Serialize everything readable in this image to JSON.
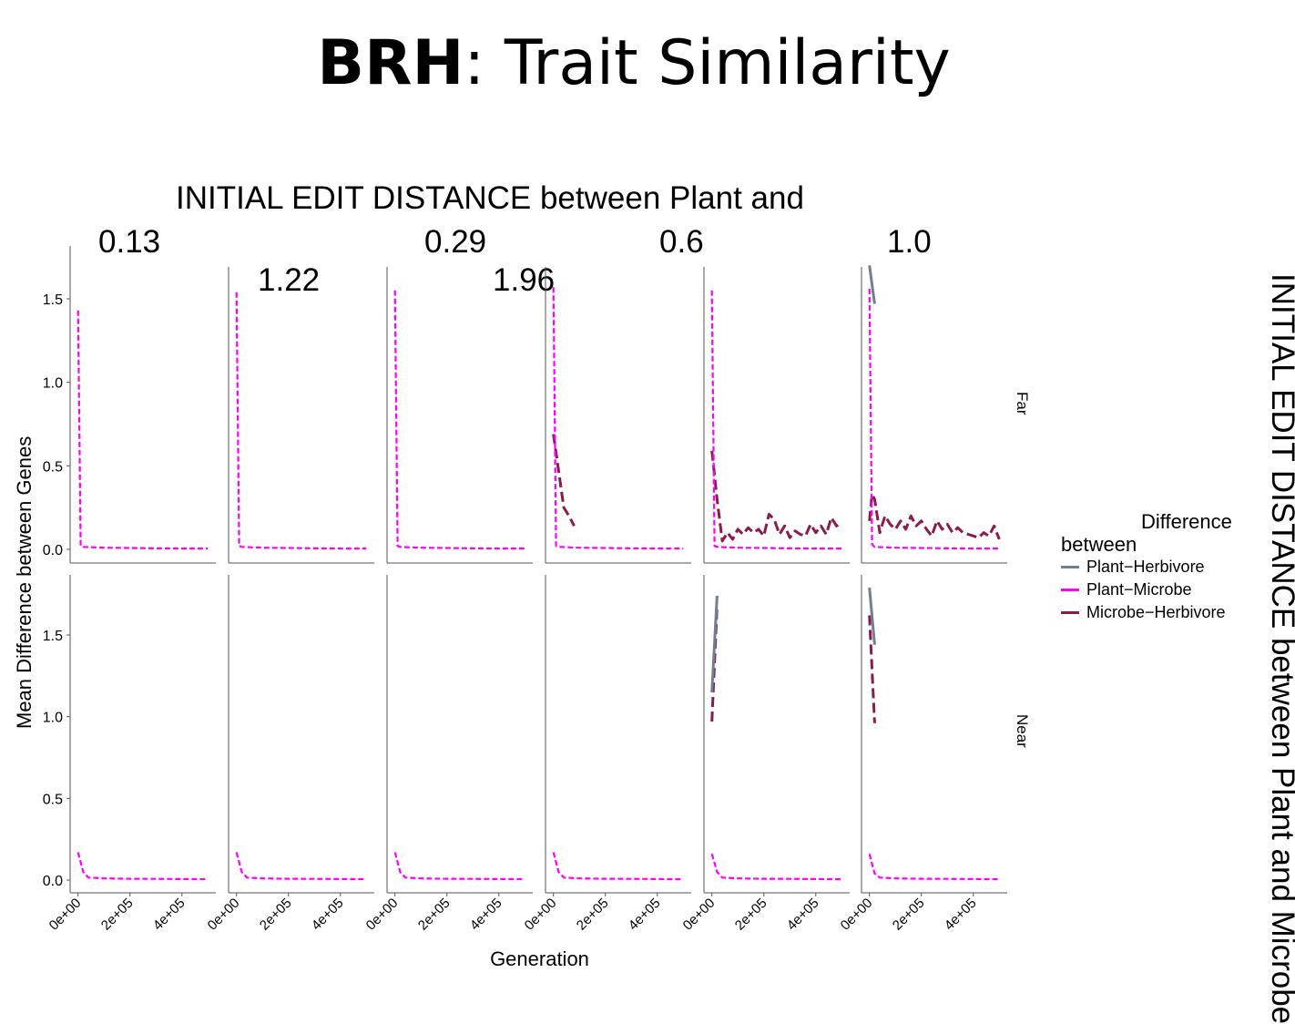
{
  "slide": {
    "title_bold": "BRH",
    "title_rest": ": Trait Similarity"
  },
  "strip": {
    "top_title": "INITIAL EDIT DISTANCE between Plant and",
    "col_values": [
      "0.13",
      "1.22",
      "0.29",
      "1.96",
      "0.6",
      "1.0"
    ],
    "right_title": "INITIAL EDIT DISTANCE between Plant and Microbe",
    "row_labels": [
      "Far",
      "Near"
    ]
  },
  "chart_data": {
    "type": "line",
    "facet": "grid",
    "xlabel": "Generation",
    "ylabel": "Mean Difference between Genes",
    "xlim": [
      -20000,
      520000
    ],
    "ylim": [
      -0.07,
      1.87
    ],
    "x_ticks": [
      0,
      200000,
      400000
    ],
    "x_tick_labels": [
      "0e+00",
      "2e+05",
      "4e+05"
    ],
    "y_ticks": [
      0,
      0.5,
      1,
      1.5
    ],
    "y_tick_labels": [
      "0.0",
      "0.5",
      "1.0",
      "1.5"
    ],
    "legend": {
      "title": "Difference between",
      "position": "right",
      "entries": [
        {
          "name": "Plant−Herbivore",
          "color": "#708090"
        },
        {
          "name": "Plant−Microbe",
          "color": "#ff00ff"
        },
        {
          "name": "Microbe−Herbivore",
          "color": "#8b1a4f"
        }
      ]
    },
    "series_styles": {
      "Plant−Herbivore": {
        "color": "#708090",
        "width": 3,
        "dash": ""
      },
      "Plant−Microbe": {
        "color": "#ff00ff",
        "width": 2.2,
        "dash": "6 3"
      },
      "Microbe−Herbivore": {
        "color": "#8b1a4f",
        "width": 3,
        "dash": "11 5"
      }
    },
    "panels": [
      {
        "row": 0,
        "col": 0,
        "series": [
          {
            "name": "Plant−Microbe",
            "x": [
              0,
              10000,
              20000,
              100000,
              200000,
              300000,
              400000,
              500000
            ],
            "y": [
              1.43,
              0.02,
              0.015,
              0.01,
              0.008,
              0.006,
              0.005,
              0.005
            ]
          }
        ]
      },
      {
        "row": 0,
        "col": 1,
        "series": [
          {
            "name": "Plant−Microbe",
            "x": [
              0,
              10000,
              20000,
              100000,
              200000,
              300000,
              400000,
              500000
            ],
            "y": [
              1.54,
              0.02,
              0.015,
              0.01,
              0.008,
              0.006,
              0.005,
              0.005
            ]
          }
        ]
      },
      {
        "row": 0,
        "col": 2,
        "series": [
          {
            "name": "Plant−Microbe",
            "x": [
              0,
              10000,
              20000,
              100000,
              200000,
              300000,
              400000,
              500000
            ],
            "y": [
              1.55,
              0.02,
              0.015,
              0.01,
              0.008,
              0.006,
              0.005,
              0.005
            ]
          }
        ]
      },
      {
        "row": 0,
        "col": 3,
        "series": [
          {
            "name": "Microbe−Herbivore",
            "x": [
              0,
              20000,
              40000,
              60000,
              80000
            ],
            "y": [
              0.69,
              0.47,
              0.25,
              0.2,
              0.14
            ]
          },
          {
            "name": "Plant−Microbe",
            "x": [
              0,
              10000,
              20000,
              100000,
              200000,
              300000,
              400000,
              500000
            ],
            "y": [
              1.57,
              0.02,
              0.015,
              0.01,
              0.008,
              0.006,
              0.005,
              0.005
            ]
          }
        ]
      },
      {
        "row": 0,
        "col": 4,
        "series": [
          {
            "name": "Microbe−Herbivore",
            "x": [
              0,
              20000,
              40000,
              60000,
              80000,
              100000,
              120000,
              140000,
              160000,
              180000,
              200000,
              220000,
              240000,
              260000,
              280000,
              300000,
              320000,
              340000,
              360000,
              380000,
              400000,
              420000,
              440000,
              460000,
              480000,
              500000
            ],
            "y": [
              0.59,
              0.3,
              0.05,
              0.1,
              0.06,
              0.12,
              0.09,
              0.13,
              0.1,
              0.12,
              0.08,
              0.21,
              0.18,
              0.09,
              0.14,
              0.07,
              0.11,
              0.09,
              0.08,
              0.15,
              0.1,
              0.14,
              0.09,
              0.19,
              0.14,
              0.16
            ]
          },
          {
            "name": "Plant−Microbe",
            "x": [
              0,
              10000,
              20000,
              100000,
              200000,
              300000,
              400000,
              500000
            ],
            "y": [
              1.55,
              0.02,
              0.015,
              0.01,
              0.008,
              0.006,
              0.005,
              0.005
            ]
          }
        ]
      },
      {
        "row": 0,
        "col": 5,
        "series": [
          {
            "name": "Plant−Herbivore",
            "x": [
              0,
              20000
            ],
            "y": [
              1.7,
              1.47
            ]
          },
          {
            "name": "Microbe−Herbivore",
            "x": [
              0,
              10000,
              20000,
              40000,
              60000,
              80000,
              100000,
              120000,
              140000,
              160000,
              180000,
              200000,
              220000,
              240000,
              260000,
              280000,
              300000,
              320000,
              340000,
              360000,
              380000,
              400000,
              420000,
              440000,
              460000,
              480000,
              500000
            ],
            "y": [
              0.17,
              0.33,
              0.3,
              0.1,
              0.2,
              0.15,
              0.12,
              0.17,
              0.12,
              0.2,
              0.14,
              0.17,
              0.12,
              0.08,
              0.17,
              0.12,
              0.15,
              0.1,
              0.13,
              0.1,
              0.09,
              0.08,
              0.07,
              0.1,
              0.08,
              0.14,
              0.06
            ]
          },
          {
            "name": "Plant−Microbe",
            "x": [
              0,
              10000,
              20000,
              100000,
              200000,
              300000,
              400000,
              500000
            ],
            "y": [
              1.56,
              0.03,
              0.015,
              0.01,
              0.008,
              0.006,
              0.005,
              0.005
            ]
          }
        ]
      },
      {
        "row": 1,
        "col": 0,
        "series": [
          {
            "name": "Plant−Microbe",
            "x": [
              0,
              20000,
              40000,
              100000,
              200000,
              300000,
              400000,
              500000
            ],
            "y": [
              0.17,
              0.05,
              0.015,
              0.01,
              0.008,
              0.007,
              0.006,
              0.005
            ]
          }
        ]
      },
      {
        "row": 1,
        "col": 1,
        "series": [
          {
            "name": "Plant−Microbe",
            "x": [
              0,
              20000,
              40000,
              100000,
              200000,
              300000,
              400000,
              500000
            ],
            "y": [
              0.17,
              0.05,
              0.015,
              0.01,
              0.008,
              0.007,
              0.006,
              0.005
            ]
          }
        ]
      },
      {
        "row": 1,
        "col": 2,
        "series": [
          {
            "name": "Plant−Microbe",
            "x": [
              0,
              20000,
              40000,
              100000,
              200000,
              300000,
              400000,
              500000
            ],
            "y": [
              0.17,
              0.05,
              0.015,
              0.01,
              0.008,
              0.007,
              0.006,
              0.005
            ]
          }
        ]
      },
      {
        "row": 1,
        "col": 3,
        "series": [
          {
            "name": "Plant−Microbe",
            "x": [
              0,
              20000,
              40000,
              100000,
              200000,
              300000,
              400000,
              500000
            ],
            "y": [
              0.17,
              0.05,
              0.015,
              0.01,
              0.008,
              0.007,
              0.006,
              0.005
            ]
          }
        ]
      },
      {
        "row": 1,
        "col": 4,
        "series": [
          {
            "name": "Plant−Herbivore",
            "x": [
              0,
              20000
            ],
            "y": [
              1.15,
              1.74
            ]
          },
          {
            "name": "Microbe−Herbivore",
            "x": [
              0,
              20000
            ],
            "y": [
              0.97,
              1.68
            ]
          },
          {
            "name": "Plant−Microbe",
            "x": [
              0,
              20000,
              40000,
              100000,
              200000,
              300000,
              400000,
              500000
            ],
            "y": [
              0.16,
              0.05,
              0.015,
              0.01,
              0.008,
              0.007,
              0.006,
              0.005
            ]
          }
        ]
      },
      {
        "row": 1,
        "col": 5,
        "series": [
          {
            "name": "Plant−Herbivore",
            "x": [
              0,
              20000
            ],
            "y": [
              1.79,
              1.44
            ]
          },
          {
            "name": "Microbe−Herbivore",
            "x": [
              0,
              20000
            ],
            "y": [
              1.62,
              0.96
            ]
          },
          {
            "name": "Plant−Microbe",
            "x": [
              0,
              20000,
              40000,
              100000,
              200000,
              300000,
              400000,
              500000
            ],
            "y": [
              0.16,
              0.04,
              0.015,
              0.01,
              0.008,
              0.007,
              0.006,
              0.005
            ]
          }
        ]
      }
    ]
  }
}
